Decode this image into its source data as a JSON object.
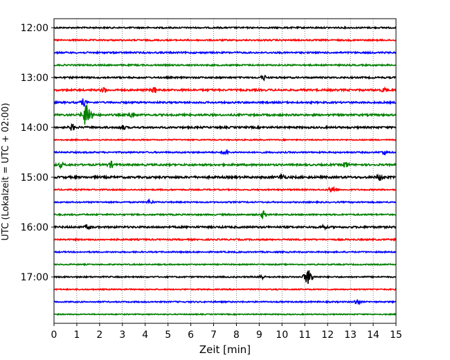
{
  "chart_data": {
    "type": "line",
    "title": "",
    "xlabel": "Zeit  [min]",
    "ylabel": "UTC (Lokalzeit = UTC + 02:00)",
    "xlim": [
      0,
      15
    ],
    "x_ticks": [
      "0",
      "1",
      "2",
      "3",
      "4",
      "5",
      "6",
      "7",
      "8",
      "9",
      "10",
      "11",
      "12",
      "13",
      "14",
      "15"
    ],
    "y_tick_labels": [
      "12:00",
      "13:00",
      "14:00",
      "15:00",
      "16:00",
      "17:00"
    ],
    "grid": "vertical dotted at each minute",
    "legend": "none",
    "trace_colors": [
      "#000000",
      "#ff0000",
      "#0000ff",
      "#008000"
    ],
    "traces": [
      {
        "start": "12:00",
        "amplitude": 1.0,
        "events": []
      },
      {
        "start": "12:15",
        "amplitude": 1.0,
        "events": []
      },
      {
        "start": "12:30",
        "amplitude": 1.1,
        "events": []
      },
      {
        "start": "12:45",
        "amplitude": 1.0,
        "events": []
      },
      {
        "start": "13:00",
        "amplitude": 1.1,
        "events": [
          {
            "t": 9.2,
            "amp": 3
          }
        ]
      },
      {
        "start": "13:15",
        "amplitude": 1.3,
        "events": [
          {
            "t": 2.2,
            "amp": 3
          },
          {
            "t": 4.4,
            "amp": 4
          },
          {
            "t": 14.5,
            "amp": 3
          }
        ]
      },
      {
        "start": "13:30",
        "amplitude": 1.2,
        "events": [
          {
            "t": 1.3,
            "amp": 5
          }
        ]
      },
      {
        "start": "13:45",
        "amplitude": 1.3,
        "events": [
          {
            "t": 1.45,
            "amp": 18
          },
          {
            "t": 3.4,
            "amp": 4
          }
        ]
      },
      {
        "start": "14:00",
        "amplitude": 1.3,
        "events": [
          {
            "t": 0.8,
            "amp": 4
          },
          {
            "t": 3.0,
            "amp": 3
          }
        ]
      },
      {
        "start": "14:15",
        "amplitude": 0.8,
        "events": []
      },
      {
        "start": "14:30",
        "amplitude": 1.0,
        "events": [
          {
            "t": 7.5,
            "amp": 3
          },
          {
            "t": 14.5,
            "amp": 3
          }
        ]
      },
      {
        "start": "14:45",
        "amplitude": 1.3,
        "events": [
          {
            "t": 0.3,
            "amp": 3
          },
          {
            "t": 2.5,
            "amp": 4
          },
          {
            "t": 12.8,
            "amp": 4
          }
        ]
      },
      {
        "start": "15:00",
        "amplitude": 1.5,
        "events": [
          {
            "t": 10.0,
            "amp": 4
          },
          {
            "t": 14.3,
            "amp": 4
          }
        ]
      },
      {
        "start": "15:15",
        "amplitude": 0.9,
        "events": [
          {
            "t": 12.2,
            "amp": 5
          }
        ]
      },
      {
        "start": "15:30",
        "amplitude": 0.9,
        "events": [
          {
            "t": 4.2,
            "amp": 3
          }
        ]
      },
      {
        "start": "15:45",
        "amplitude": 1.0,
        "events": [
          {
            "t": 9.2,
            "amp": 5
          }
        ]
      },
      {
        "start": "16:00",
        "amplitude": 1.3,
        "events": [
          {
            "t": 1.5,
            "amp": 3
          },
          {
            "t": 11.8,
            "amp": 3
          }
        ]
      },
      {
        "start": "16:15",
        "amplitude": 1.0,
        "events": []
      },
      {
        "start": "16:30",
        "amplitude": 0.9,
        "events": []
      },
      {
        "start": "16:45",
        "amplitude": 0.8,
        "events": []
      },
      {
        "start": "17:00",
        "amplitude": 0.9,
        "events": [
          {
            "t": 9.1,
            "amp": 3
          },
          {
            "t": 11.15,
            "amp": 10
          }
        ]
      },
      {
        "start": "17:15",
        "amplitude": 0.8,
        "events": []
      },
      {
        "start": "17:30",
        "amplitude": 0.9,
        "events": [
          {
            "t": 13.3,
            "amp": 4
          }
        ]
      },
      {
        "start": "17:45",
        "amplitude": 0.7,
        "events": []
      }
    ]
  }
}
